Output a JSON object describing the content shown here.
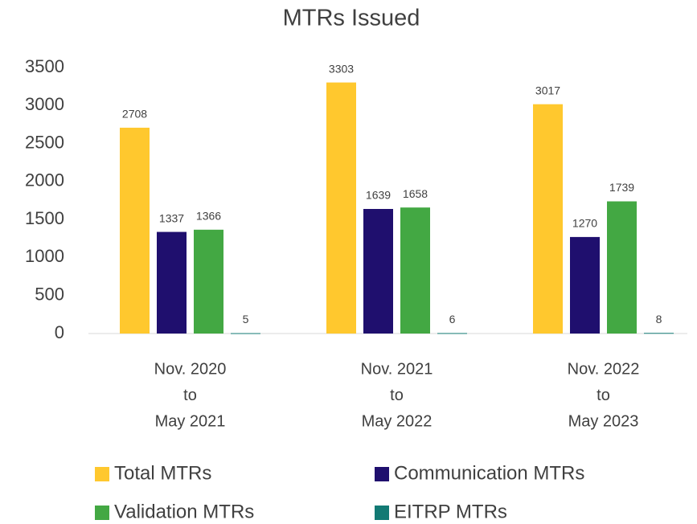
{
  "chart_data": {
    "type": "bar",
    "title": "MTRs Issued",
    "categories": [
      [
        "Nov. 2020",
        "to",
        "May 2021"
      ],
      [
        "Nov. 2021",
        "to",
        "May 2022"
      ],
      [
        "Nov. 2022",
        "to",
        "May 2023"
      ]
    ],
    "series": [
      {
        "name": "Total MTRs",
        "color": "#ffc82e",
        "values": [
          2708,
          3303,
          3017
        ]
      },
      {
        "name": "Communication MTRs",
        "color": "#1f0f6e",
        "values": [
          1337,
          1639,
          1270
        ]
      },
      {
        "name": "Validation MTRs",
        "color": "#43a843",
        "values": [
          1366,
          1658,
          1739
        ]
      },
      {
        "name": "EITRP MTRs",
        "color": "#127a74",
        "values": [
          5,
          6,
          8
        ]
      }
    ],
    "ylim": [
      0,
      3500
    ],
    "yticks": [
      0,
      500,
      1000,
      1500,
      2000,
      2500,
      3000,
      3500
    ],
    "grid": false,
    "legend": "bottom"
  }
}
